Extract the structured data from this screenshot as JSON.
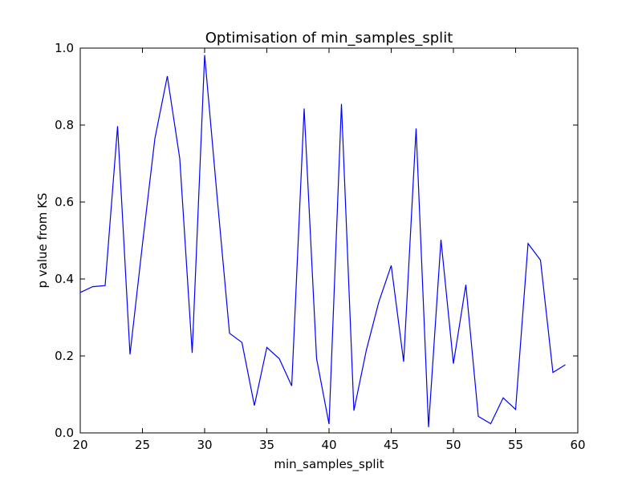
{
  "chart_data": {
    "type": "line",
    "title": "Optimisation of min_samples_split",
    "xlabel": "min_samples_split",
    "ylabel": "p value from KS",
    "xlim": [
      20,
      60
    ],
    "ylim": [
      0.0,
      1.0
    ],
    "xticks": [
      "20",
      "25",
      "30",
      "35",
      "40",
      "45",
      "50",
      "55",
      "60"
    ],
    "yticks": [
      "0.0",
      "0.2",
      "0.4",
      "0.6",
      "0.8",
      "1.0"
    ],
    "grid": false,
    "line_color": "#0000ff",
    "x": [
      20,
      21,
      22,
      23,
      24,
      25,
      26,
      27,
      28,
      29,
      30,
      31,
      32,
      33,
      34,
      35,
      36,
      37,
      38,
      39,
      40,
      41,
      42,
      43,
      44,
      45,
      46,
      47,
      48,
      49,
      50,
      51,
      52,
      53,
      54,
      55,
      56,
      57,
      58,
      59
    ],
    "y": [
      0.365,
      0.38,
      0.383,
      0.797,
      0.204,
      0.49,
      0.765,
      0.927,
      0.713,
      0.208,
      0.982,
      0.615,
      0.259,
      0.235,
      0.071,
      0.222,
      0.193,
      0.122,
      0.843,
      0.193,
      0.023,
      0.855,
      0.058,
      0.215,
      0.34,
      0.435,
      0.185,
      0.791,
      0.015,
      0.502,
      0.18,
      0.385,
      0.043,
      0.024,
      0.091,
      0.061,
      0.492,
      0.449,
      0.157,
      0.177
    ]
  }
}
